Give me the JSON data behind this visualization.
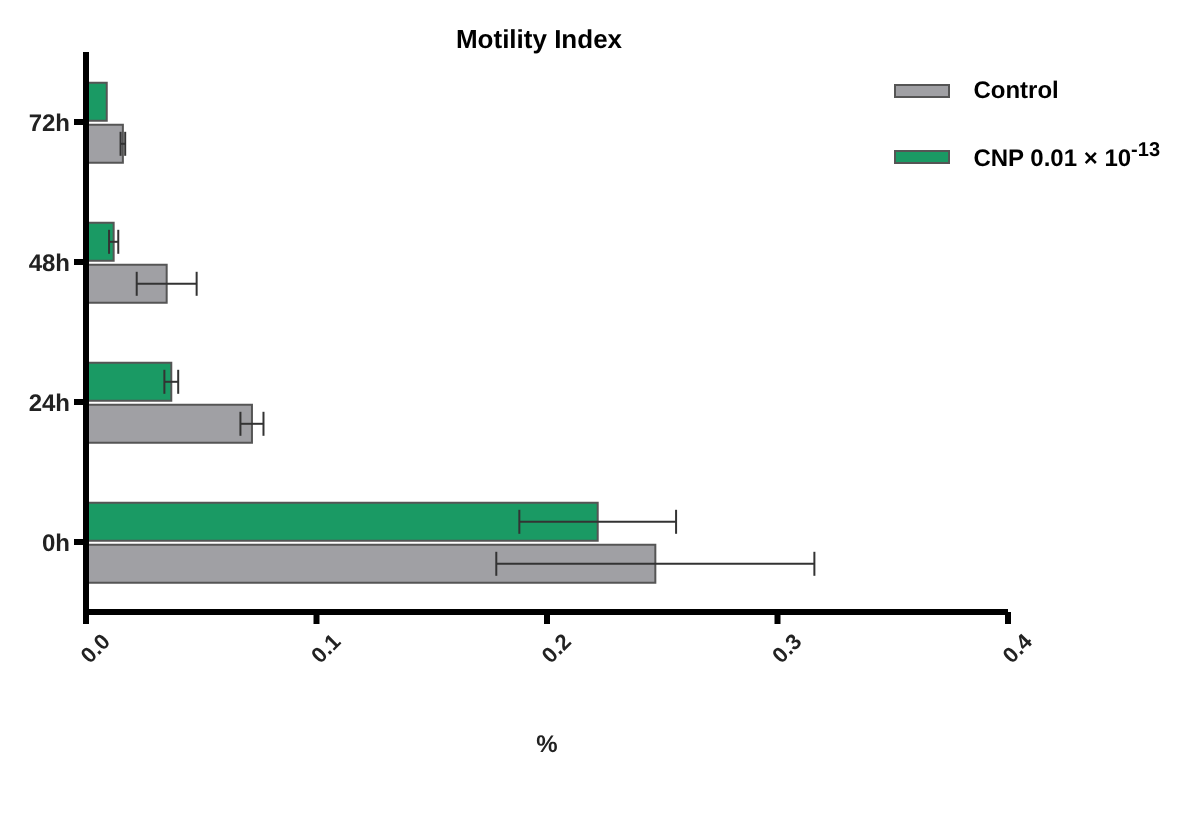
{
  "chart_data": {
    "type": "bar",
    "orientation": "horizontal",
    "title": "Motility Index",
    "xlabel": "%",
    "categories": [
      "72h",
      "48h",
      "24h",
      "0h"
    ],
    "series": [
      {
        "name": "Control",
        "color": "#a0a0a4",
        "values": [
          0.016,
          0.035,
          0.072,
          0.247
        ],
        "errors": [
          0.001,
          0.013,
          0.005,
          0.069
        ]
      },
      {
        "name": "CNP 0.01 × 10$^{-13}$",
        "color": "#1a9a64",
        "values": [
          0.009,
          0.012,
          0.037,
          0.222
        ],
        "errors": [
          null,
          0.002,
          0.003,
          0.034
        ]
      }
    ],
    "xlim": [
      0,
      0.4
    ],
    "xticks": [
      {
        "value": 0,
        "label": "0.0"
      },
      0.1,
      0.2,
      0.3,
      0.4
    ],
    "grid": false,
    "legend": "top right"
  }
}
